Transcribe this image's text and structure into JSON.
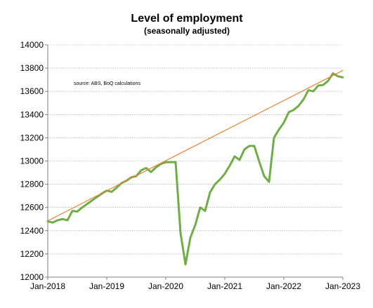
{
  "chart_data": {
    "type": "line",
    "title": "Level of employment",
    "subtitle": "(seasonally adjusted)",
    "annotation": "source:  ABS, BoQ calculations",
    "xlabel": "",
    "ylabel": "",
    "ylim": [
      12000,
      14000
    ],
    "yticks": [
      12000,
      12200,
      12400,
      12600,
      12800,
      13000,
      13200,
      13400,
      13600,
      13800,
      14000
    ],
    "xlim": [
      "2018-01",
      "2023-01"
    ],
    "xtick_labels": [
      "Jan-2018",
      "Jan-2019",
      "Jan-2020",
      "Jan-2021",
      "Jan-2022",
      "Jan-2023"
    ],
    "grid": true,
    "legend": "none",
    "series": [
      {
        "color": "#70ad47",
        "x": [
          "2018-01",
          "2018-02",
          "2018-03",
          "2018-04",
          "2018-05",
          "2018-06",
          "2018-07",
          "2018-08",
          "2018-09",
          "2018-10",
          "2018-11",
          "2018-12",
          "2019-01",
          "2019-02",
          "2019-03",
          "2019-04",
          "2019-05",
          "2019-06",
          "2019-07",
          "2019-08",
          "2019-09",
          "2019-10",
          "2019-11",
          "2019-12",
          "2020-01",
          "2020-02",
          "2020-03",
          "2020-04",
          "2020-05",
          "2020-06",
          "2020-07",
          "2020-08",
          "2020-09",
          "2020-10",
          "2020-11",
          "2020-12",
          "2021-01",
          "2021-02",
          "2021-03",
          "2021-04",
          "2021-05",
          "2021-06",
          "2021-07",
          "2021-08",
          "2021-09",
          "2021-10",
          "2021-11",
          "2021-12",
          "2022-01",
          "2022-02",
          "2022-03",
          "2022-04",
          "2022-05",
          "2022-06",
          "2022-07",
          "2022-08",
          "2022-09",
          "2022-10",
          "2022-11",
          "2022-12",
          "2023-01"
        ],
        "values": [
          12480,
          12470,
          12490,
          12500,
          12490,
          12570,
          12565,
          12600,
          12630,
          12660,
          12690,
          12720,
          12745,
          12735,
          12770,
          12810,
          12830,
          12860,
          12870,
          12920,
          12940,
          12905,
          12945,
          12975,
          12990,
          12990,
          12990,
          12380,
          12110,
          12340,
          12450,
          12600,
          12570,
          12730,
          12800,
          12840,
          12890,
          12960,
          13040,
          13010,
          13100,
          13130,
          13130,
          12995,
          12870,
          12820,
          13200,
          13270,
          13330,
          13420,
          13440,
          13475,
          13530,
          13610,
          13600,
          13650,
          13655,
          13690,
          13755,
          13730,
          13720
        ]
      },
      {
        "color": "#ed7d31",
        "x": [
          "2018-01",
          "2023-01"
        ],
        "values": [
          12485,
          13780
        ]
      }
    ]
  }
}
